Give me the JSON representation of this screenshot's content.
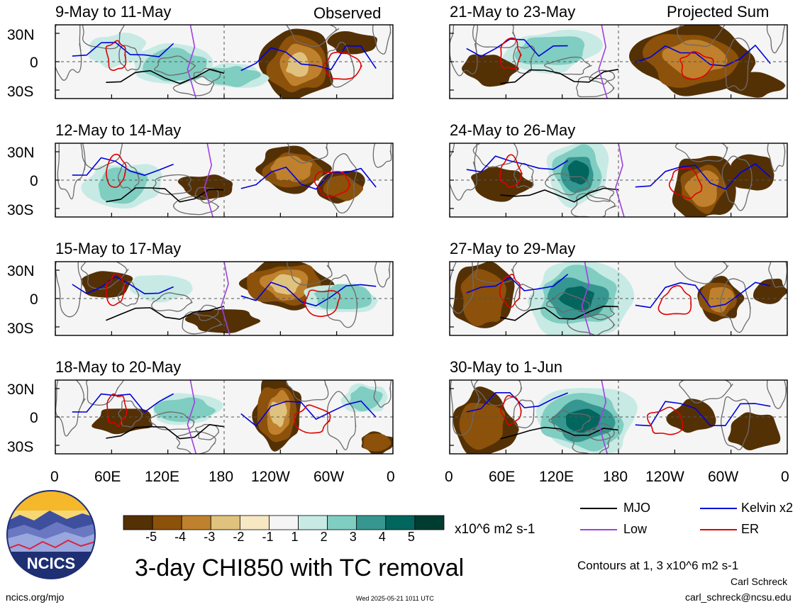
{
  "panels": [
    {
      "title": "9-May to 11-May",
      "tag": "Observed"
    },
    {
      "title": "12-May to 14-May",
      "tag": ""
    },
    {
      "title": "15-May to 17-May",
      "tag": ""
    },
    {
      "title": "18-May to 20-May",
      "tag": ""
    },
    {
      "title": "21-May to 23-May",
      "tag": "Projected Sum"
    },
    {
      "title": "24-May to 26-May",
      "tag": ""
    },
    {
      "title": "27-May to 29-May",
      "tag": ""
    },
    {
      "title": "30-May to 1-Jun",
      "tag": ""
    }
  ],
  "lat_labels": [
    "30N",
    "0",
    "30S"
  ],
  "lon_labels": [
    "0",
    "60E",
    "120E",
    "180",
    "120W",
    "60W",
    "0"
  ],
  "colorbar": {
    "tick_labels": [
      "-5",
      "-4",
      "-3",
      "-2",
      "-1",
      "1",
      "2",
      "3",
      "4",
      "5"
    ],
    "colors": [
      "#543005",
      "#8c510a",
      "#bf812d",
      "#dfc27d",
      "#f6e8c3",
      "#f5f5f5",
      "#c7eae5",
      "#80cdc1",
      "#35978f",
      "#01665e",
      "#003c30"
    ],
    "units": "x10^6 m2 s-1"
  },
  "legend": [
    {
      "label": "MJO",
      "color": "#000000"
    },
    {
      "label": "Kelvin x2",
      "color": "#0000dd"
    },
    {
      "label": "Low",
      "color": "#a040e0"
    },
    {
      "label": "ER",
      "color": "#e00000"
    }
  ],
  "main_title": "3-day CHI850 with TC removal",
  "contours_note": "Contours at 1, 3 x10^6 m2 s-1",
  "author": "Carl Schreck",
  "email": "carl_schreck@ncsu.edu",
  "site": "ncics.org/mjo",
  "timestamp": "Wed 2025-05-21 1011 UTC",
  "logo_text": "NCICS"
}
